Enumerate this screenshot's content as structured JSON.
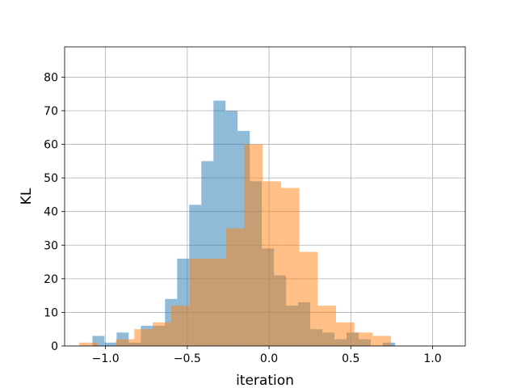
{
  "chart_data": {
    "type": "bar",
    "subtype": "overlaid-histogram",
    "title": "",
    "xlabel": "iteration",
    "ylabel": "KL",
    "xlim": [
      -1.25,
      1.2
    ],
    "ylim": [
      0,
      89
    ],
    "xticks": [
      -1.0,
      -0.5,
      0.0,
      0.5,
      1.0
    ],
    "xtick_labels": [
      "−1.0",
      "−0.5",
      "0.0",
      "0.5",
      "1.0"
    ],
    "yticks": [
      0,
      10,
      20,
      30,
      40,
      50,
      60,
      70,
      80
    ],
    "yticks_labels": [
      "0",
      "10",
      "20",
      "30",
      "40",
      "50",
      "60",
      "70",
      "80"
    ],
    "grid": true,
    "legend": "none",
    "series": [
      {
        "color": "#1f77b4",
        "opacity": 0.5,
        "bin_edges": [
          -1.08,
          -1.006,
          -0.932,
          -0.858,
          -0.784,
          -0.71,
          -0.636,
          -0.562,
          -0.488,
          -0.414,
          -0.34,
          -0.266,
          -0.192,
          -0.118,
          -0.044,
          0.03,
          0.104,
          0.178,
          0.252,
          0.326,
          0.4,
          0.474,
          0.548,
          0.622,
          0.696,
          0.77
        ],
        "counts": [
          3,
          1,
          4,
          1,
          6,
          6,
          14,
          26,
          42,
          55,
          73,
          70,
          64,
          49,
          29,
          21,
          12,
          13,
          5,
          4,
          2,
          4,
          2,
          0,
          1
        ]
      },
      {
        "color": "#ff7f0e",
        "opacity": 0.5,
        "bin_edges": [
          -1.16,
          -1.0479,
          -0.9358,
          -0.8237,
          -0.7116,
          -0.5995,
          -0.4874,
          -0.3753,
          -0.2632,
          -0.1511,
          -0.039,
          0.0731,
          0.1852,
          0.2973,
          0.4094,
          0.5215,
          0.6336,
          0.7457,
          0.8578,
          0.9699,
          1.082
        ],
        "counts": [
          1,
          0,
          2,
          5,
          7,
          12,
          26,
          26,
          35,
          60,
          49,
          47,
          28,
          12,
          7,
          4,
          3,
          0,
          0,
          0
        ],
        "note_ignore": ""
      }
    ]
  }
}
